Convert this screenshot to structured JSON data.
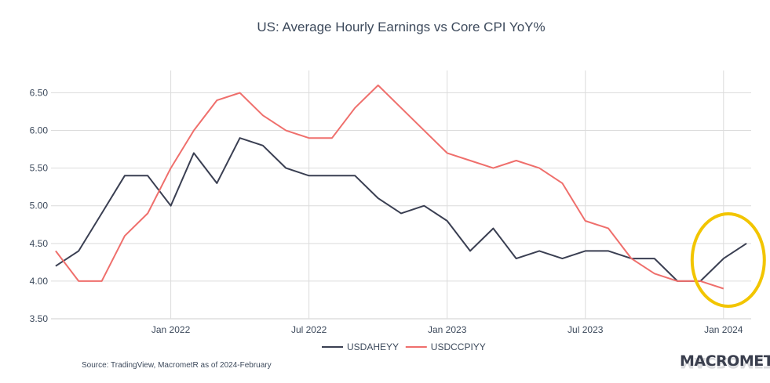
{
  "chart_data": {
    "type": "line",
    "title": "US: Average Hourly Earnings vs Core CPI YoY%",
    "xlabel": "",
    "ylabel": "",
    "y_ticks": [
      "3.50",
      "4.00",
      "4.50",
      "5.00",
      "5.50",
      "6.00",
      "6.50"
    ],
    "y_tick_values": [
      3.5,
      4.0,
      4.5,
      5.0,
      5.5,
      6.0,
      6.5
    ],
    "ylim": [
      3.5,
      6.9
    ],
    "x_ticks": [
      "Jan 2022",
      "Jul 2022",
      "Jan 2023",
      "Jul 2023",
      "Jan 2024"
    ],
    "x_tick_dates": [
      "2022-01",
      "2022-07",
      "2023-01",
      "2023-07",
      "2024-01"
    ],
    "xlim": [
      "2021-08",
      "2024-03"
    ],
    "grid": true,
    "legend_position": "bottom-center",
    "series": [
      {
        "name": "USDAHEYY",
        "color": "#3a3f52",
        "x": [
          "2021-08",
          "2021-09",
          "2021-10",
          "2021-11",
          "2021-12",
          "2022-01",
          "2022-02",
          "2022-03",
          "2022-04",
          "2022-05",
          "2022-06",
          "2022-07",
          "2022-08",
          "2022-09",
          "2022-10",
          "2022-11",
          "2022-12",
          "2023-01",
          "2023-02",
          "2023-03",
          "2023-04",
          "2023-05",
          "2023-06",
          "2023-07",
          "2023-08",
          "2023-09",
          "2023-10",
          "2023-11",
          "2023-12",
          "2024-01",
          "2024-02"
        ],
        "values": [
          4.2,
          4.4,
          4.9,
          5.4,
          5.4,
          5.0,
          5.7,
          5.3,
          5.9,
          5.8,
          5.5,
          5.4,
          5.4,
          5.4,
          5.1,
          4.9,
          5.0,
          4.8,
          4.4,
          4.7,
          4.3,
          4.4,
          4.3,
          4.4,
          4.4,
          4.3,
          4.3,
          4.0,
          4.0,
          4.3,
          4.5
        ]
      },
      {
        "name": "USDCCPIYY",
        "color": "#ef6f6c",
        "x": [
          "2021-08",
          "2021-09",
          "2021-10",
          "2021-11",
          "2021-12",
          "2022-01",
          "2022-02",
          "2022-03",
          "2022-04",
          "2022-05",
          "2022-06",
          "2022-07",
          "2022-08",
          "2022-09",
          "2022-10",
          "2022-11",
          "2022-12",
          "2023-01",
          "2023-02",
          "2023-03",
          "2023-04",
          "2023-05",
          "2023-06",
          "2023-07",
          "2023-08",
          "2023-09",
          "2023-10",
          "2023-11",
          "2023-12",
          "2024-01"
        ],
        "values": [
          4.4,
          4.0,
          4.0,
          4.6,
          4.9,
          5.5,
          6.0,
          6.4,
          6.5,
          6.2,
          6.0,
          5.9,
          5.9,
          6.3,
          6.6,
          6.3,
          6.0,
          5.7,
          5.6,
          5.5,
          5.6,
          5.5,
          5.3,
          4.8,
          4.7,
          4.3,
          4.1,
          4.0,
          4.0,
          3.9
        ]
      }
    ],
    "annotations": [
      {
        "shape": "ellipse",
        "color": "#f2c500",
        "around": "2024-01"
      }
    ],
    "source_note": "Source: TradingView, MacrometR  as of 2024-February"
  },
  "branding": {
    "logo_text": "MACROMETR"
  },
  "colors": {
    "grid": "#dcdcdc",
    "axis_text": "#3d4a5c",
    "highlight": "#f2c500"
  }
}
